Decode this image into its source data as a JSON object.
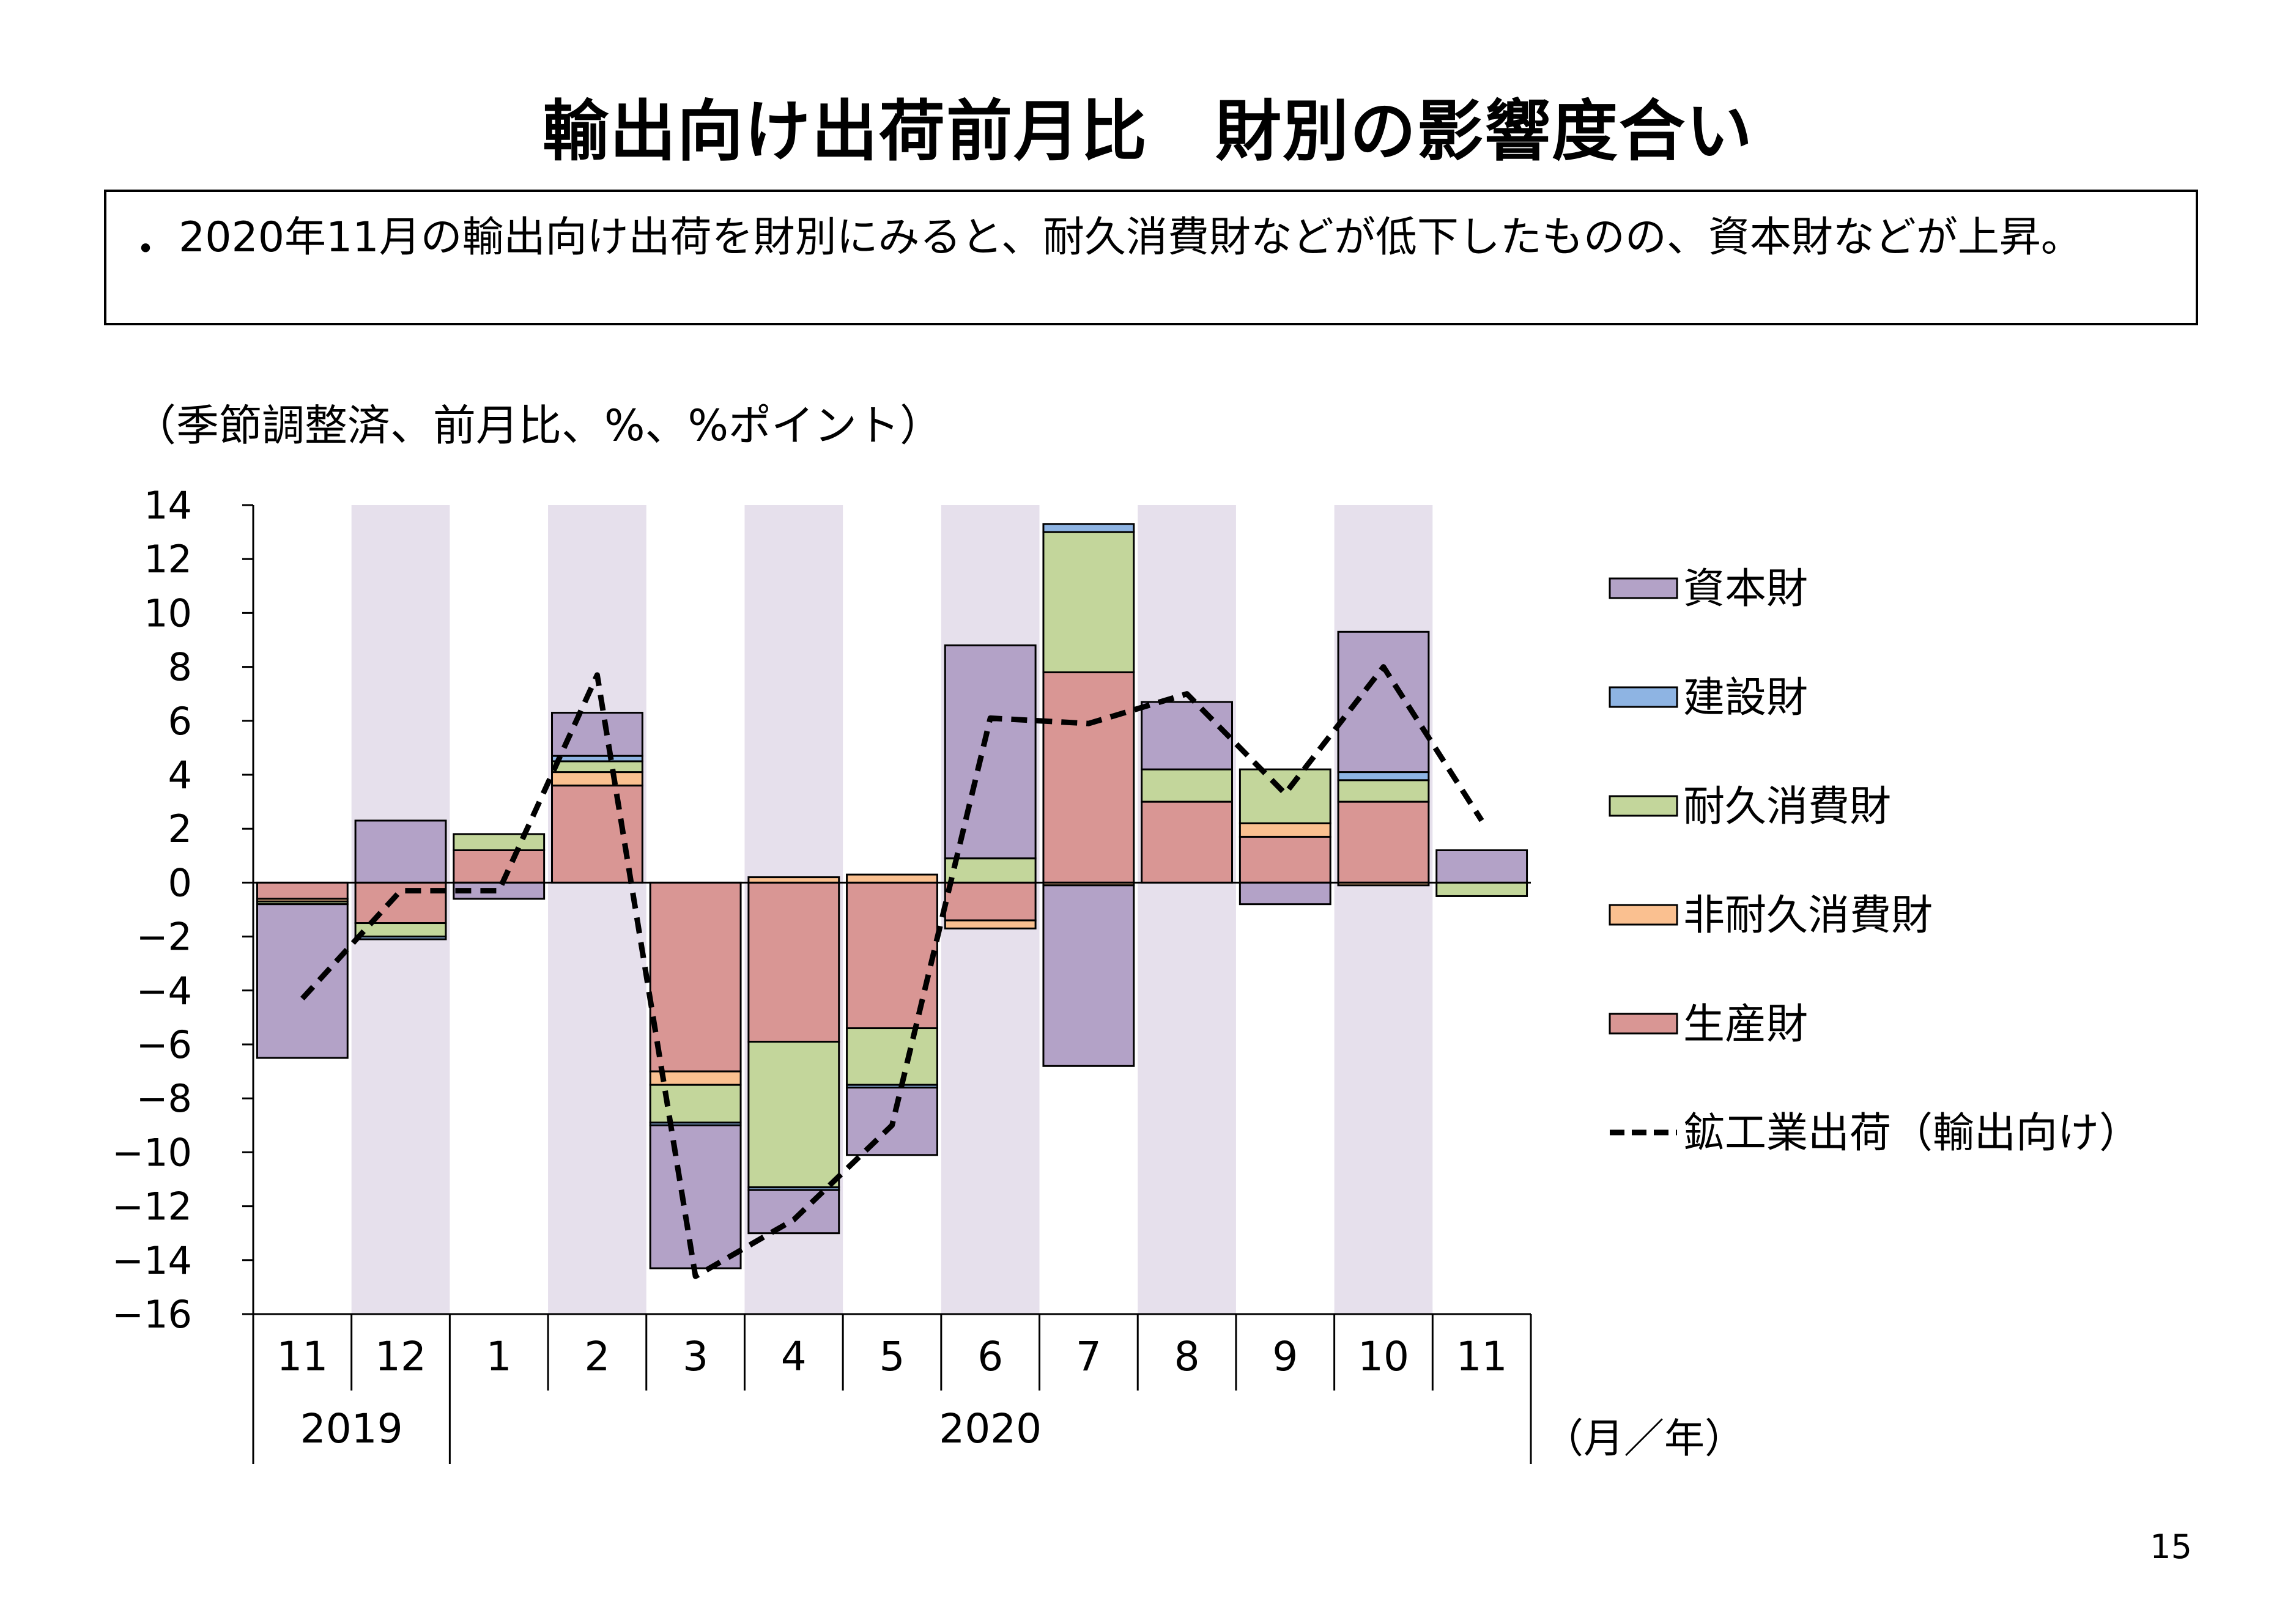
{
  "title": "輸出向け出荷前月比　財別の影響度合い",
  "summary": {
    "bullet": "・",
    "text": "2020年11月の輸出向け出荷を財別にみると、耐久消費財などが低下したものの、資本財などが上昇。"
  },
  "unit_note": "（季節調整済、前月比、%、%ポイント）",
  "page_number": "15",
  "colors": {
    "capital": "#b3a2c7",
    "construction": "#8eb4e3",
    "durable": "#c3d69b",
    "nondurable": "#fac090",
    "producer": "#d99694",
    "band": "#e6e0ec",
    "line": "#000000"
  },
  "chart_data": {
    "type": "bar",
    "stacked": true,
    "categories": [
      "11",
      "12",
      "1",
      "2",
      "3",
      "4",
      "5",
      "6",
      "7",
      "8",
      "9",
      "10",
      "11"
    ],
    "year_groups": [
      {
        "label": "2019",
        "from": 0,
        "to": 1
      },
      {
        "label": "2020",
        "from": 2,
        "to": 12
      }
    ],
    "x_unit_label": "（月／年）",
    "ylim": [
      -16,
      14
    ],
    "yticks": [
      "14",
      "12",
      "10",
      "8",
      "6",
      "4",
      "2",
      "0",
      "−2",
      "−4",
      "−6",
      "−8",
      "−10",
      "−12",
      "−14",
      "−16"
    ],
    "ytick_values": [
      14,
      12,
      10,
      8,
      6,
      4,
      2,
      0,
      -2,
      -4,
      -6,
      -8,
      -10,
      -12,
      -14,
      -16
    ],
    "shaded_categories": [
      1,
      3,
      5,
      7,
      9,
      11
    ],
    "series": [
      {
        "name": "生産財",
        "color": "#d99694",
        "values": [
          -0.6,
          -1.5,
          1.2,
          3.6,
          -7.0,
          -5.9,
          -5.4,
          -1.4,
          7.8,
          3.0,
          1.7,
          3.0,
          0.0
        ]
      },
      {
        "name": "非耐久消費財",
        "color": "#fac090",
        "values": [
          -0.1,
          0.0,
          0.0,
          0.5,
          -0.5,
          0.2,
          0.3,
          -0.3,
          -0.1,
          0.0,
          0.5,
          -0.1,
          0.0
        ]
      },
      {
        "name": "耐久消費財",
        "color": "#c3d69b",
        "values": [
          -0.1,
          -0.5,
          0.6,
          0.4,
          -1.4,
          -5.4,
          -2.1,
          0.9,
          5.2,
          1.2,
          2.0,
          0.8,
          -0.5
        ]
      },
      {
        "name": "建設財",
        "color": "#8eb4e3",
        "values": [
          0.0,
          -0.1,
          0.0,
          0.2,
          -0.1,
          -0.1,
          -0.1,
          0.0,
          0.3,
          0.0,
          0.0,
          0.3,
          0.0
        ]
      },
      {
        "name": "資本財",
        "color": "#b3a2c7",
        "values": [
          -5.7,
          2.3,
          -0.6,
          1.6,
          -5.3,
          -1.6,
          -2.5,
          7.9,
          -6.7,
          2.5,
          -0.8,
          5.2,
          1.2
        ]
      }
    ],
    "line": {
      "name": "鉱工業出荷（輸出向け）",
      "values": [
        -4.3,
        -0.3,
        -0.3,
        7.7,
        -14.6,
        -12.5,
        -9.0,
        6.1,
        5.9,
        7.0,
        3.3,
        8.0,
        2.3
      ]
    },
    "legend": {
      "position": "right",
      "order": [
        "資本財",
        "建設財",
        "耐久消費財",
        "非耐久消費財",
        "生産財",
        "鉱工業出荷（輸出向け）"
      ]
    }
  }
}
